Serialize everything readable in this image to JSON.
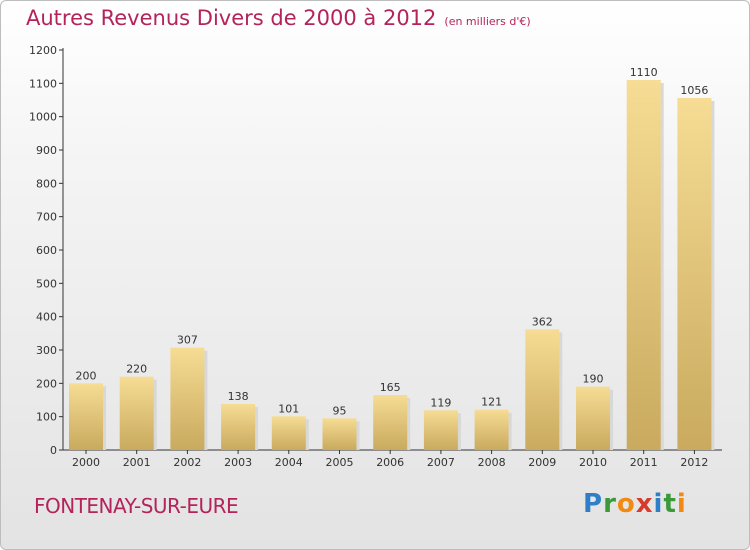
{
  "header": {
    "title": "Autres Revenus Divers de 2000 à 2012",
    "unit": "(en milliers d'€)"
  },
  "footer": {
    "city": "FONTENAY-SUR-EURE",
    "logo_letters": [
      "P",
      "r",
      "o",
      "x",
      "i",
      "t",
      "i"
    ],
    "logo_colors": [
      "#2f7fc8",
      "#3a9a3a",
      "#f08a12",
      "#d83b2a",
      "#2f7fc8",
      "#3a9a3a",
      "#f08a12"
    ]
  },
  "colors": {
    "title": "#b4235a",
    "bar_light": "#f6dc94",
    "bar_dark": "#c9aa5e",
    "axis": "#333333"
  },
  "chart_data": {
    "type": "bar",
    "categories": [
      "2000",
      "2001",
      "2002",
      "2003",
      "2004",
      "2005",
      "2006",
      "2007",
      "2008",
      "2009",
      "2010",
      "2011",
      "2012"
    ],
    "values": [
      200,
      220,
      307,
      138,
      101,
      95,
      165,
      119,
      121,
      362,
      190,
      1110,
      1056
    ],
    "ylim": [
      0,
      1200
    ],
    "yticks": [
      0,
      100,
      200,
      300,
      400,
      500,
      600,
      700,
      800,
      900,
      1000,
      1100,
      1200
    ],
    "grid": false,
    "legend": "none"
  }
}
